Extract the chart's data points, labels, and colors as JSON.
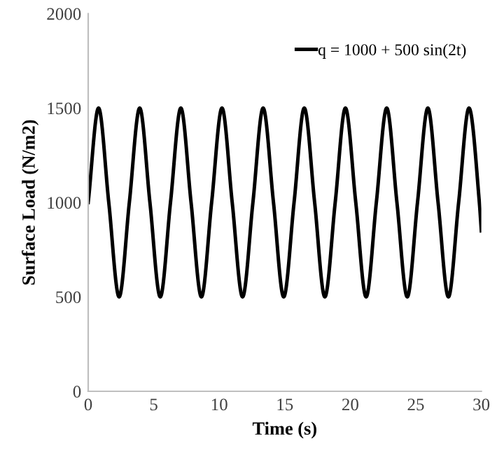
{
  "chart_data": {
    "type": "line",
    "xlabel": "Time (s)",
    "ylabel": "Surface Load (N/m2)",
    "xlim": [
      0,
      30
    ],
    "xticks": [
      0,
      5,
      10,
      15,
      20,
      25,
      30
    ],
    "ylim": [
      0,
      2000
    ],
    "yticks": [
      0,
      500,
      1000,
      1500,
      2000
    ],
    "grid": false,
    "legend": "top right",
    "marker": "none",
    "line_style": "solid",
    "series": [
      {
        "name": "q = 1000 + 500 sin(2t)",
        "color": "#000000",
        "x": [
          0,
          0.79,
          1.57,
          2.36,
          3.14,
          3.93,
          4.71,
          5.5,
          6.28,
          7.07,
          7.85,
          8.64,
          9.42,
          10.21,
          10.99,
          11.78,
          12.57,
          13.35,
          14.14,
          14.92,
          15.71,
          16.49,
          17.28,
          18.06,
          18.85,
          19.63,
          20.42,
          21.21,
          21.99,
          22.78,
          23.56,
          24.35,
          25.13,
          25.92,
          26.7,
          27.49,
          28.27,
          29.06,
          29.85,
          30
        ],
        "values": [
          1000,
          1500,
          1000,
          500,
          1000,
          1500,
          1000,
          500,
          1000,
          1500,
          1000,
          500,
          1000,
          1500,
          1000,
          500,
          1000,
          1500,
          1000,
          500,
          1000,
          1500,
          1000,
          500,
          1000,
          1500,
          1000,
          500,
          1000,
          1500,
          1000,
          500,
          1000,
          1500,
          1000,
          500,
          1000,
          1500,
          1000,
          850
        ]
      }
    ]
  }
}
